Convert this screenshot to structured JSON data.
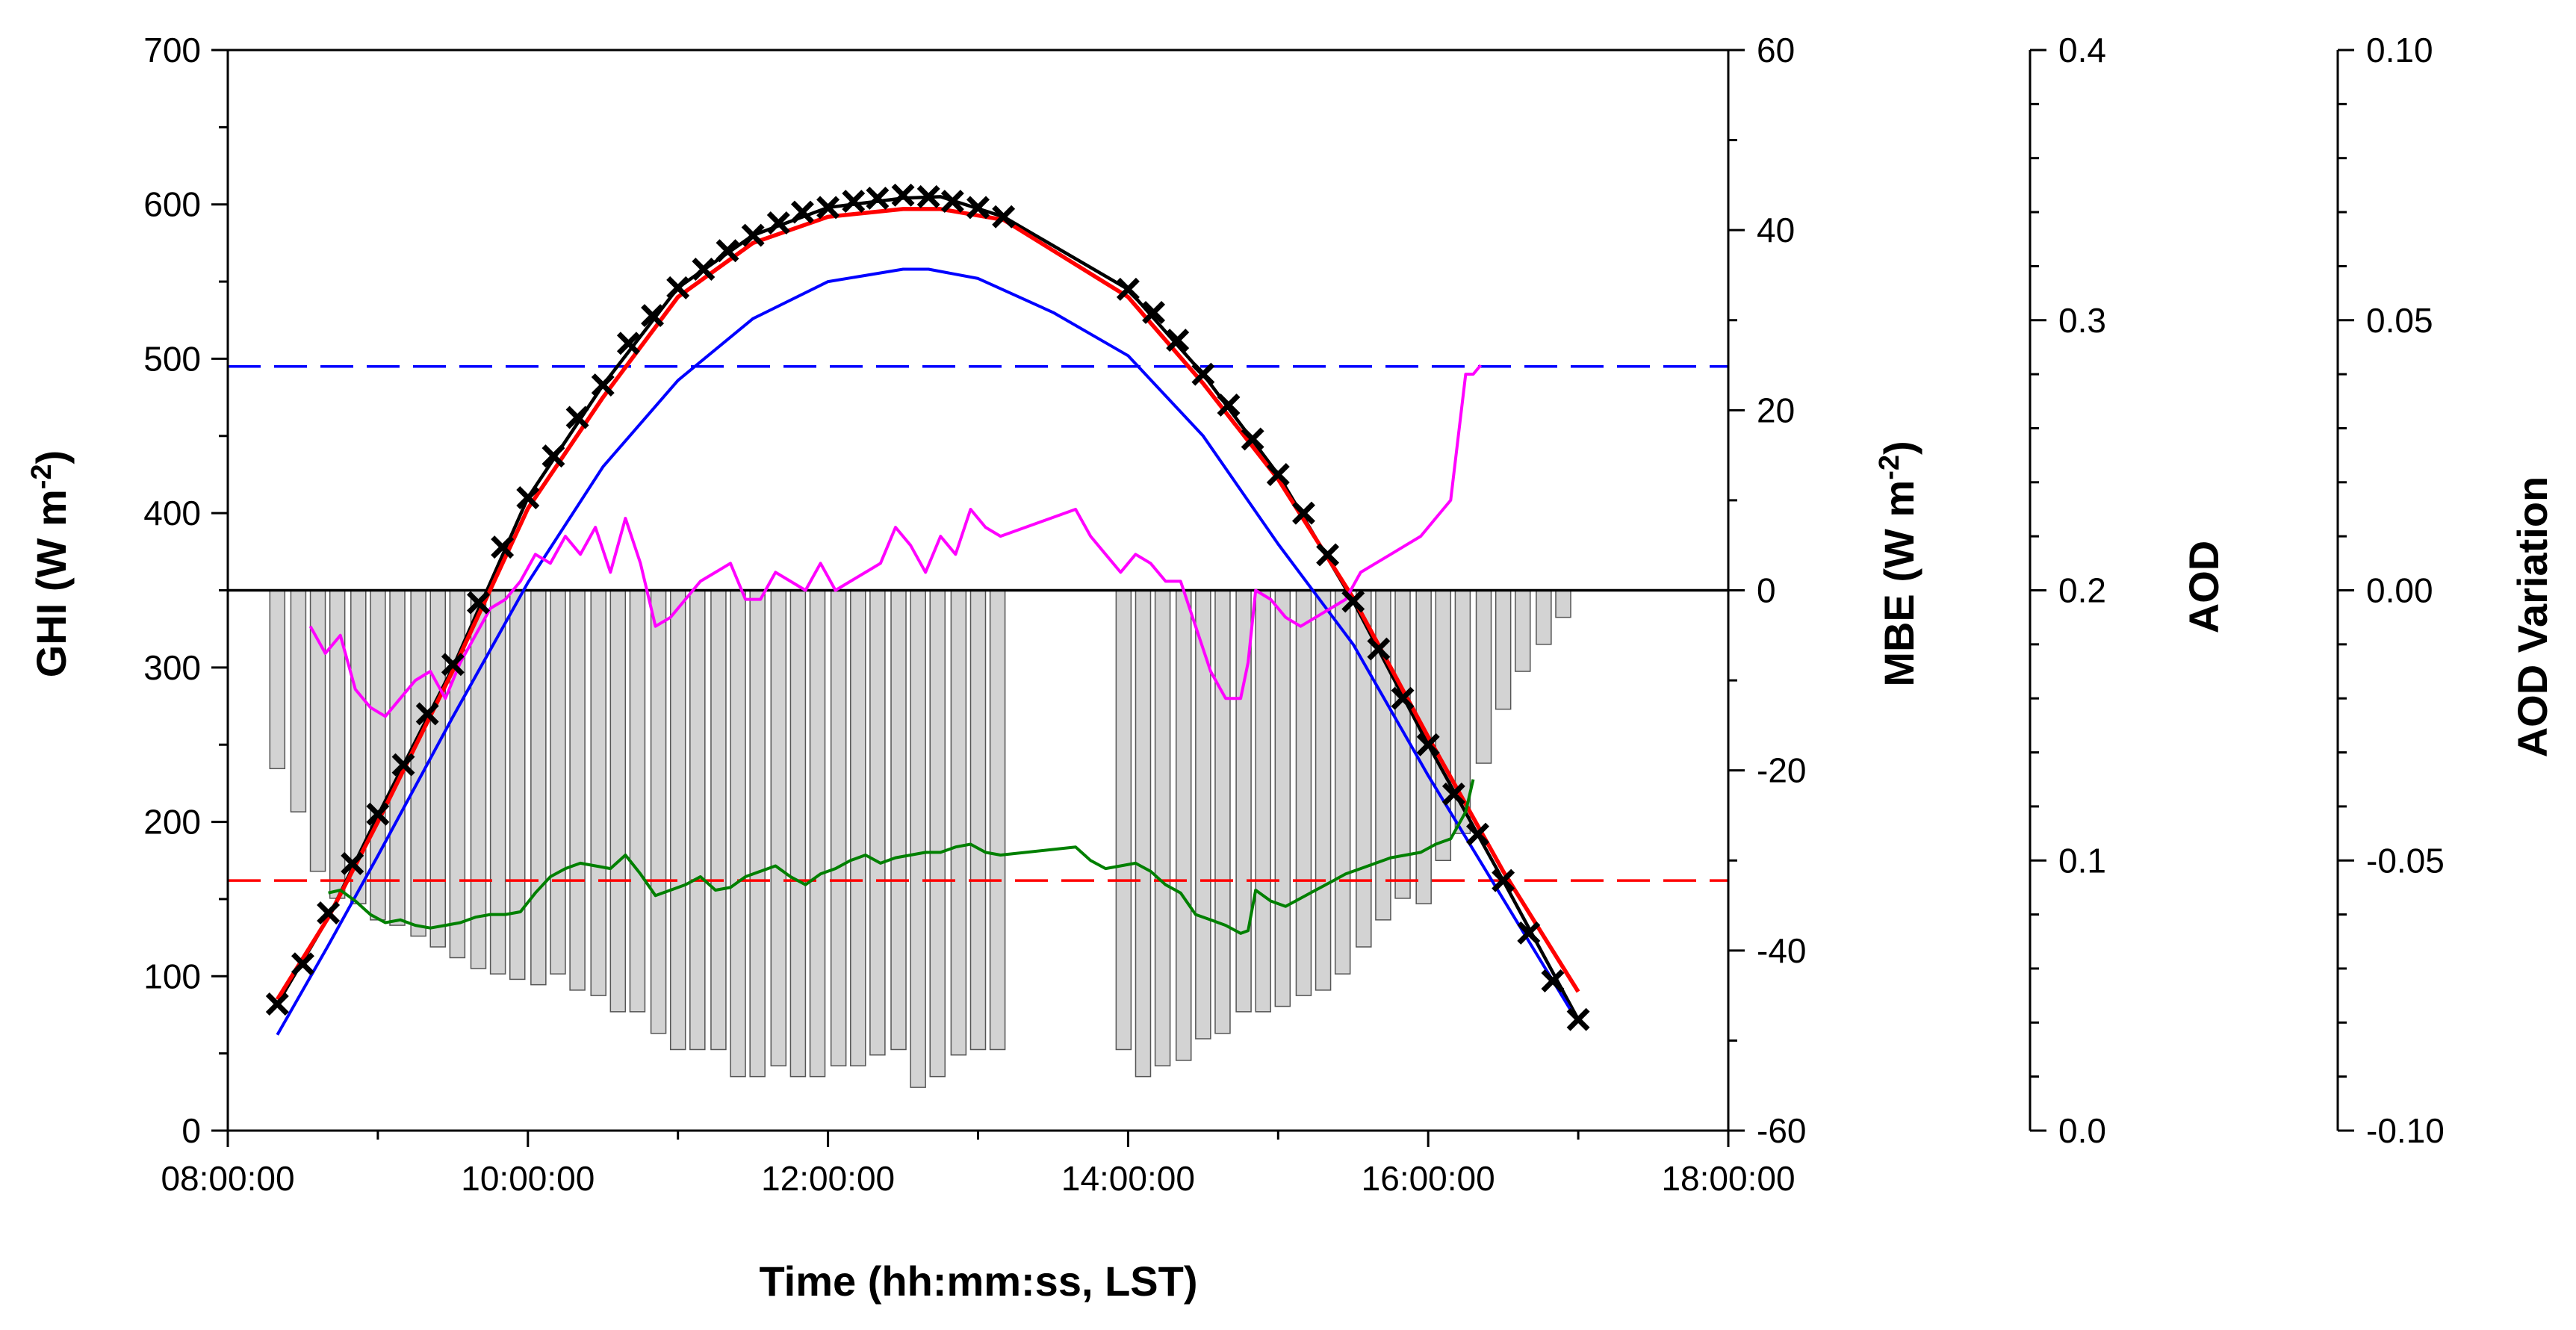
{
  "chart_data": {
    "type": "line",
    "xlabel": "Time (hh:mm:ss, LST)",
    "x_ticks": [
      "08:00:00",
      "10:00:00",
      "12:00:00",
      "14:00:00",
      "16:00:00",
      "18:00:00"
    ],
    "xlim": [
      8,
      18
    ],
    "axes": {
      "ghi": {
        "label": "GHI (W m",
        "sup": "-2",
        "close": ")",
        "ylim": [
          0,
          700
        ],
        "ticks": [
          "0",
          "100",
          "200",
          "300",
          "400",
          "500",
          "600",
          "700"
        ]
      },
      "mbe": {
        "label": "MBE (W m",
        "sup": "-2",
        "close": ")",
        "ylim": [
          -60,
          60
        ],
        "ticks": [
          "-60",
          "-40",
          "-20",
          "0",
          "20",
          "40",
          "60"
        ]
      },
      "aod": {
        "label": "AOD",
        "ylim": [
          0,
          0.4
        ],
        "ticks": [
          "0.0",
          "0.1",
          "0.2",
          "0.3",
          "0.4"
        ]
      },
      "aod_variation": {
        "label": "AOD Variation",
        "ylim": [
          -0.1,
          0.1
        ],
        "ticks": [
          "-0.10",
          "-0.05",
          "0.00",
          "0.05",
          "0.10"
        ]
      }
    },
    "series": [
      {
        "name": "GHI measured (× markers)",
        "axis": "ghi",
        "color": "#000000",
        "style": "markers",
        "x": [
          8.33,
          8.5,
          8.67,
          8.83,
          9.0,
          9.17,
          9.33,
          9.5,
          9.67,
          9.83,
          10.0,
          10.17,
          10.33,
          10.5,
          10.67,
          10.83,
          11.0,
          11.17,
          11.33,
          11.5,
          11.67,
          11.83,
          12.0,
          12.17,
          12.33,
          12.5,
          12.67,
          12.83,
          13.0,
          13.17,
          14.0,
          14.17,
          14.33,
          14.5,
          14.67,
          14.83,
          15.0,
          15.17,
          15.33,
          15.5,
          15.67,
          15.83,
          16.0,
          16.17,
          16.33,
          16.5,
          16.67,
          16.83,
          17.0
        ],
        "y": [
          82,
          108,
          141,
          173,
          205,
          237,
          270,
          302,
          342,
          378,
          410,
          437,
          462,
          483,
          510,
          528,
          546,
          558,
          570,
          580,
          588,
          595,
          598,
          602,
          604,
          606,
          605,
          602,
          598,
          592,
          545,
          530,
          512,
          490,
          470,
          448,
          425,
          400,
          373,
          343,
          312,
          280,
          250,
          218,
          192,
          162,
          128,
          97,
          72
        ]
      },
      {
        "name": "GHI model (black line)",
        "axis": "ghi",
        "color": "#000000",
        "style": "line",
        "x": [
          8.33,
          8.67,
          9.0,
          9.5,
          10.0,
          10.5,
          11.0,
          11.5,
          12.0,
          12.5,
          12.75,
          13.17,
          14.0,
          14.5,
          15.0,
          15.5,
          16.0,
          16.5,
          17.0
        ],
        "y": [
          82,
          138,
          204,
          300,
          410,
          483,
          546,
          580,
          598,
          604,
          605,
          592,
          545,
          490,
          425,
          343,
          250,
          162,
          72
        ]
      },
      {
        "name": "GHI model (red line)",
        "axis": "ghi",
        "color": "#ff0000",
        "style": "line",
        "x": [
          8.33,
          8.67,
          9.0,
          9.5,
          10.0,
          10.5,
          11.0,
          11.5,
          12.0,
          12.5,
          12.75,
          13.17,
          14.0,
          14.5,
          15.0,
          15.5,
          16.0,
          16.5,
          17.0
        ],
        "y": [
          85,
          138,
          200,
          298,
          403,
          475,
          540,
          575,
          592,
          597,
          597,
          590,
          540,
          484,
          422,
          345,
          255,
          168,
          90
        ]
      },
      {
        "name": "GHI model (blue line)",
        "axis": "ghi",
        "color": "#0000ff",
        "style": "line",
        "x": [
          8.33,
          8.67,
          9.0,
          9.5,
          10.0,
          10.5,
          11.0,
          11.5,
          12.0,
          12.5,
          12.67,
          13.0,
          13.5,
          14.0,
          14.5,
          15.0,
          15.5,
          16.0,
          16.5,
          17.0
        ],
        "y": [
          62,
          120,
          178,
          268,
          355,
          430,
          486,
          526,
          550,
          558,
          558,
          552,
          530,
          502,
          450,
          380,
          315,
          230,
          150,
          70
        ]
      },
      {
        "name": "MBE (magenta)",
        "axis": "mbe",
        "color": "#ff00ff",
        "style": "line",
        "x": [
          8.55,
          8.65,
          8.75,
          8.85,
          8.95,
          9.05,
          9.15,
          9.25,
          9.35,
          9.45,
          9.55,
          9.65,
          9.75,
          9.85,
          9.95,
          10.05,
          10.15,
          10.25,
          10.35,
          10.45,
          10.55,
          10.65,
          10.75,
          10.85,
          10.95,
          11.05,
          11.15,
          11.25,
          11.35,
          11.45,
          11.55,
          11.65,
          11.75,
          11.85,
          11.95,
          12.05,
          12.15,
          12.25,
          12.35,
          12.45,
          12.55,
          12.65,
          12.75,
          12.85,
          12.95,
          13.05,
          13.15,
          13.65,
          13.75,
          13.85,
          13.95,
          14.05,
          14.15,
          14.25,
          14.35,
          14.45,
          14.55,
          14.65,
          14.75,
          14.8,
          14.85,
          14.95,
          15.05,
          15.15,
          15.25,
          15.35,
          15.45,
          15.55,
          15.65,
          15.75,
          15.85,
          15.95,
          16.05,
          16.15,
          16.25,
          16.3,
          16.35
        ],
        "y": [
          -4,
          -7,
          -5,
          -11,
          -13,
          -14,
          -12,
          -10,
          -9,
          -12,
          -8,
          -5,
          -2,
          -1,
          1,
          4,
          3,
          6,
          4,
          7,
          2,
          8,
          3,
          -4,
          -3,
          -1,
          1,
          2,
          3,
          -1,
          -1,
          2,
          1,
          0,
          3,
          0,
          1,
          2,
          3,
          7,
          5,
          2,
          6,
          4,
          9,
          7,
          6,
          9,
          6,
          4,
          2,
          4,
          3,
          1,
          1,
          -4,
          -9,
          -12,
          -12,
          -8,
          0,
          -1,
          -3,
          -4,
          -3,
          -2,
          -1,
          2,
          3,
          4,
          5,
          6,
          8,
          10,
          24,
          24,
          25
        ]
      },
      {
        "name": "AOD (green)",
        "axis": "aod",
        "color": "#008000",
        "style": "line",
        "x": [
          8.67,
          8.75,
          8.85,
          8.95,
          9.05,
          9.15,
          9.25,
          9.35,
          9.45,
          9.55,
          9.65,
          9.75,
          9.85,
          9.95,
          10.05,
          10.15,
          10.25,
          10.35,
          10.45,
          10.55,
          10.65,
          10.75,
          10.85,
          10.95,
          11.05,
          11.15,
          11.25,
          11.35,
          11.45,
          11.55,
          11.65,
          11.75,
          11.85,
          11.95,
          12.05,
          12.15,
          12.25,
          12.35,
          12.45,
          12.55,
          12.65,
          12.75,
          12.85,
          12.95,
          13.05,
          13.15,
          13.65,
          13.75,
          13.85,
          13.95,
          14.05,
          14.15,
          14.25,
          14.35,
          14.45,
          14.55,
          14.65,
          14.75,
          14.8,
          14.85,
          14.95,
          15.05,
          15.15,
          15.25,
          15.35,
          15.45,
          15.55,
          15.65,
          15.75,
          15.85,
          15.95,
          16.05,
          16.15,
          16.25,
          16.3
        ],
        "y": [
          0.088,
          0.089,
          0.085,
          0.08,
          0.077,
          0.078,
          0.076,
          0.075,
          0.076,
          0.077,
          0.079,
          0.08,
          0.08,
          0.081,
          0.088,
          0.094,
          0.097,
          0.099,
          0.098,
          0.097,
          0.102,
          0.095,
          0.087,
          0.089,
          0.091,
          0.094,
          0.089,
          0.09,
          0.094,
          0.096,
          0.098,
          0.094,
          0.091,
          0.095,
          0.097,
          0.1,
          0.102,
          0.099,
          0.101,
          0.102,
          0.103,
          0.103,
          0.105,
          0.106,
          0.103,
          0.102,
          0.105,
          0.1,
          0.097,
          0.098,
          0.099,
          0.096,
          0.091,
          0.088,
          0.08,
          0.078,
          0.076,
          0.073,
          0.074,
          0.089,
          0.085,
          0.083,
          0.086,
          0.089,
          0.092,
          0.095,
          0.097,
          0.099,
          0.101,
          0.102,
          0.103,
          0.106,
          0.108,
          0.118,
          0.13
        ]
      },
      {
        "name": "AOD variation (bars)",
        "axis": "aod_variation",
        "color": "#d3d3d3",
        "style": "bar",
        "x": [
          8.33,
          8.47,
          8.6,
          8.73,
          8.87,
          9.0,
          9.13,
          9.27,
          9.4,
          9.53,
          9.67,
          9.8,
          9.93,
          10.07,
          10.2,
          10.33,
          10.47,
          10.6,
          10.73,
          10.87,
          11.0,
          11.13,
          11.27,
          11.4,
          11.53,
          11.67,
          11.8,
          11.93,
          12.07,
          12.2,
          12.33,
          12.47,
          12.6,
          12.73,
          12.87,
          13.0,
          13.13,
          13.97,
          14.1,
          14.23,
          14.37,
          14.5,
          14.63,
          14.77,
          14.9,
          15.03,
          15.17,
          15.3,
          15.43,
          15.57,
          15.7,
          15.83,
          15.97,
          16.1,
          16.23,
          16.37,
          16.5,
          16.63,
          16.77,
          16.9
        ],
        "y": [
          -0.033,
          -0.041,
          -0.052,
          -0.057,
          -0.058,
          -0.061,
          -0.062,
          -0.064,
          -0.066,
          -0.068,
          -0.07,
          -0.071,
          -0.072,
          -0.073,
          -0.071,
          -0.074,
          -0.075,
          -0.078,
          -0.078,
          -0.082,
          -0.085,
          -0.085,
          -0.085,
          -0.09,
          -0.09,
          -0.088,
          -0.09,
          -0.09,
          -0.088,
          -0.088,
          -0.086,
          -0.085,
          -0.092,
          -0.09,
          -0.086,
          -0.085,
          -0.085,
          -0.085,
          -0.09,
          -0.088,
          -0.087,
          -0.083,
          -0.082,
          -0.078,
          -0.078,
          -0.077,
          -0.075,
          -0.074,
          -0.071,
          -0.066,
          -0.061,
          -0.057,
          -0.058,
          -0.05,
          -0.045,
          -0.032,
          -0.022,
          -0.015,
          -0.01,
          -0.005
        ]
      }
    ],
    "reference_lines": [
      {
        "name": "zero line",
        "axis": "mbe",
        "y": 0,
        "color": "#000000",
        "style": "solid"
      },
      {
        "name": "blue dashed level",
        "axis": "ghi",
        "y": 495,
        "color": "#0000ff",
        "style": "dashed"
      },
      {
        "name": "red dashed level",
        "axis": "ghi",
        "y": 162,
        "color": "#ff0000",
        "style": "dashed"
      }
    ]
  }
}
